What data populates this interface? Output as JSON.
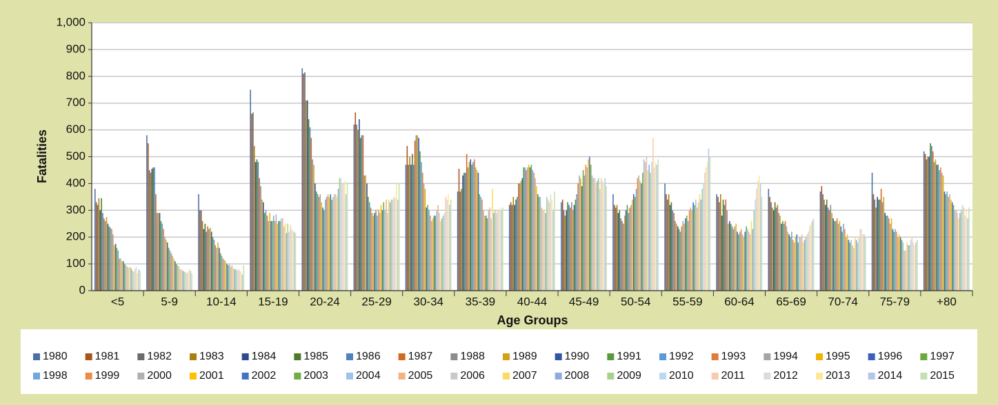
{
  "chart_data": {
    "type": "bar",
    "x_label": "Age Groups",
    "y_label": "Fatalities",
    "categories": [
      "<5",
      "5-9",
      "10-14",
      "15-19",
      "20-24",
      "25-29",
      "30-34",
      "35-39",
      "40-44",
      "45-49",
      "50-54",
      "55-59",
      "60-64",
      "65-69",
      "70-74",
      "75-79",
      "+80"
    ],
    "ylim": [
      0,
      1000
    ],
    "yticks": [
      0,
      100,
      200,
      300,
      400,
      500,
      600,
      700,
      800,
      900,
      {
        "value": 1000,
        "label": "1,000"
      }
    ],
    "grid": true,
    "legend": "bottom",
    "series": [
      {
        "name": "1980",
        "color": "#4a6fa5",
        "values": [
          380,
          580,
          360,
          750,
          830,
          620,
          470,
          370,
          320,
          330,
          360,
          400,
          360,
          380,
          370,
          440,
          520
        ]
      },
      {
        "name": "1981",
        "color": "#a65420",
        "values": [
          330,
          550,
          300,
          660,
          810,
          665,
          540,
          455,
          330,
          340,
          320,
          360,
          350,
          350,
          390,
          360,
          510
        ]
      },
      {
        "name": "1982",
        "color": "#6b6b6b",
        "values": [
          320,
          450,
          300,
          665,
          815,
          620,
          470,
          370,
          320,
          300,
          310,
          340,
          330,
          330,
          360,
          340,
          490
        ]
      },
      {
        "name": "1983",
        "color": "#a8800e",
        "values": [
          345,
          440,
          260,
          540,
          710,
          600,
          500,
          380,
          350,
          280,
          320,
          360,
          360,
          310,
          340,
          310,
          500
        ]
      },
      {
        "name": "1984",
        "color": "#2e4a8c",
        "values": [
          300,
          455,
          230,
          480,
          710,
          640,
          470,
          430,
          320,
          300,
          290,
          320,
          280,
          300,
          320,
          350,
          500
        ]
      },
      {
        "name": "1985",
        "color": "#4c7a2a",
        "values": [
          345,
          460,
          250,
          490,
          640,
          570,
          510,
          440,
          340,
          330,
          300,
          330,
          340,
          330,
          340,
          340,
          550
        ]
      },
      {
        "name": "1986",
        "color": "#4f81bd",
        "values": [
          290,
          460,
          220,
          480,
          610,
          580,
          470,
          440,
          350,
          320,
          270,
          300,
          320,
          310,
          310,
          340,
          540
        ]
      },
      {
        "name": "1987",
        "color": "#d2691e",
        "values": [
          270,
          360,
          240,
          420,
          570,
          580,
          560,
          510,
          400,
          310,
          260,
          290,
          340,
          320,
          300,
          380,
          520
        ]
      },
      {
        "name": "1988",
        "color": "#8c8c8c",
        "values": [
          260,
          290,
          230,
          390,
          490,
          430,
          580,
          460,
          400,
          330,
          250,
          260,
          300,
          290,
          320,
          330,
          480
        ]
      },
      {
        "name": "1989",
        "color": "#d4a017",
        "values": [
          275,
          290,
          235,
          340,
          470,
          430,
          580,
          480,
          410,
          300,
          280,
          250,
          250,
          280,
          290,
          350,
          490
        ]
      },
      {
        "name": "1990",
        "color": "#2f55a4",
        "values": [
          250,
          290,
          220,
          330,
          400,
          400,
          570,
          490,
          420,
          320,
          300,
          240,
          260,
          250,
          270,
          290,
          470
        ]
      },
      {
        "name": "1991",
        "color": "#5b9a3c",
        "values": [
          240,
          260,
          200,
          290,
          370,
          350,
          520,
          470,
          460,
          340,
          320,
          230,
          250,
          260,
          260,
          280,
          470
        ]
      },
      {
        "name": "1992",
        "color": "#5b9bd5",
        "values": [
          235,
          250,
          190,
          300,
          360,
          330,
          480,
          480,
          460,
          360,
          290,
          220,
          240,
          250,
          260,
          280,
          450
        ]
      },
      {
        "name": "1993",
        "color": "#e07b39",
        "values": [
          230,
          230,
          170,
          280,
          350,
          310,
          440,
          490,
          450,
          400,
          310,
          240,
          230,
          260,
          270,
          270,
          460
        ]
      },
      {
        "name": "1994",
        "color": "#a5a5a5",
        "values": [
          210,
          200,
          160,
          260,
          360,
          290,
          400,
          460,
          460,
          430,
          320,
          260,
          240,
          240,
          250,
          250,
          440
        ]
      },
      {
        "name": "1995",
        "color": "#f0b400",
        "values": [
          170,
          190,
          180,
          290,
          330,
          280,
          380,
          450,
          470,
          420,
          340,
          250,
          250,
          220,
          260,
          270,
          430
        ]
      },
      {
        "name": "1996",
        "color": "#3b5fc0",
        "values": [
          175,
          180,
          160,
          260,
          310,
          290,
          310,
          440,
          460,
          390,
          360,
          270,
          220,
          210,
          240,
          230,
          370
        ]
      },
      {
        "name": "1997",
        "color": "#6aaa3a",
        "values": [
          160,
          160,
          140,
          260,
          300,
          300,
          320,
          360,
          470,
          450,
          350,
          280,
          210,
          200,
          220,
          220,
          360
        ]
      },
      {
        "name": "1998",
        "color": "#6fa8dc",
        "values": [
          150,
          150,
          130,
          280,
          340,
          280,
          300,
          350,
          450,
          430,
          380,
          260,
          220,
          220,
          250,
          230,
          370
        ]
      },
      {
        "name": "1999",
        "color": "#f08a4b",
        "values": [
          120,
          140,
          120,
          260,
          350,
          300,
          280,
          340,
          440,
          470,
          420,
          300,
          230,
          190,
          230,
          220,
          350
        ]
      },
      {
        "name": "2000",
        "color": "#b0b0b0",
        "values": [
          120,
          130,
          115,
          285,
          360,
          290,
          260,
          300,
          420,
          460,
          430,
          310,
          210,
          180,
          200,
          200,
          360
        ]
      },
      {
        "name": "2001",
        "color": "#ffc000",
        "values": [
          110,
          120,
          110,
          250,
          350,
          320,
          270,
          280,
          390,
          490,
          410,
          300,
          200,
          200,
          210,
          210,
          340
        ]
      },
      {
        "name": "2002",
        "color": "#4472c4",
        "values": [
          110,
          110,
          100,
          260,
          360,
          300,
          280,
          280,
          360,
          500,
          400,
          330,
          220,
          210,
          190,
          200,
          330
        ]
      },
      {
        "name": "2003",
        "color": "#70ad47",
        "values": [
          100,
          100,
          95,
          260,
          340,
          330,
          280,
          270,
          350,
          470,
          440,
          320,
          240,
          180,
          180,
          190,
          320
        ]
      },
      {
        "name": "2004",
        "color": "#9dc3e6",
        "values": [
          95,
          95,
          100,
          270,
          350,
          300,
          300,
          300,
          350,
          430,
          490,
          340,
          230,
          200,
          190,
          180,
          300
        ]
      },
      {
        "name": "2005",
        "color": "#f4b183",
        "values": [
          90,
          90,
          90,
          270,
          360,
          340,
          320,
          310,
          310,
          420,
          480,
          310,
          220,
          200,
          170,
          150,
          300
        ]
      },
      {
        "name": "2006",
        "color": "#c9c9c9",
        "values": [
          85,
          80,
          95,
          240,
          360,
          290,
          290,
          270,
          300,
          420,
          500,
          330,
          210,
          210,
          160,
          150,
          290
        ]
      },
      {
        "name": "2007",
        "color": "#ffd966",
        "values": [
          90,
          80,
          85,
          250,
          350,
          340,
          260,
          380,
          300,
          400,
          450,
          360,
          260,
          180,
          200,
          180,
          270
        ]
      },
      {
        "name": "2008",
        "color": "#8faadc",
        "values": [
          85,
          75,
          80,
          215,
          380,
          330,
          270,
          290,
          290,
          410,
          470,
          340,
          230,
          190,
          190,
          170,
          290
        ]
      },
      {
        "name": "2009",
        "color": "#a9d18e",
        "values": [
          75,
          70,
          80,
          250,
          420,
          340,
          280,
          300,
          350,
          420,
          440,
          380,
          300,
          200,
          180,
          170,
          300
        ]
      },
      {
        "name": "2010",
        "color": "#bdd7ee",
        "values": [
          70,
          70,
          75,
          220,
          420,
          340,
          290,
          290,
          340,
          380,
          480,
          400,
          340,
          210,
          200,
          190,
          320
        ]
      },
      {
        "name": "2011",
        "color": "#f8cbad",
        "values": [
          80,
          65,
          80,
          245,
          400,
          350,
          350,
          300,
          330,
          420,
          570,
          440,
          380,
          220,
          230,
          200,
          310
        ]
      },
      {
        "name": "2012",
        "color": "#dbdbdb",
        "values": [
          90,
          70,
          75,
          230,
          400,
          345,
          340,
          300,
          360,
          410,
          460,
          460,
          410,
          240,
          230,
          180,
          280
        ]
      },
      {
        "name": "2013",
        "color": "#ffe699",
        "values": [
          65,
          80,
          70,
          225,
          410,
          400,
          360,
          310,
          340,
          400,
          480,
          480,
          430,
          250,
          210,
          170,
          300
        ]
      },
      {
        "name": "2014",
        "color": "#b4c7e7",
        "values": [
          80,
          75,
          60,
          220,
          360,
          340,
          320,
          300,
          300,
          420,
          470,
          530,
          400,
          260,
          210,
          180,
          270
        ]
      },
      {
        "name": "2015",
        "color": "#c5e0b4",
        "values": [
          75,
          65,
          95,
          215,
          400,
          400,
          340,
          310,
          370,
          390,
          490,
          500,
          350,
          270,
          200,
          190,
          310
        ]
      }
    ]
  }
}
